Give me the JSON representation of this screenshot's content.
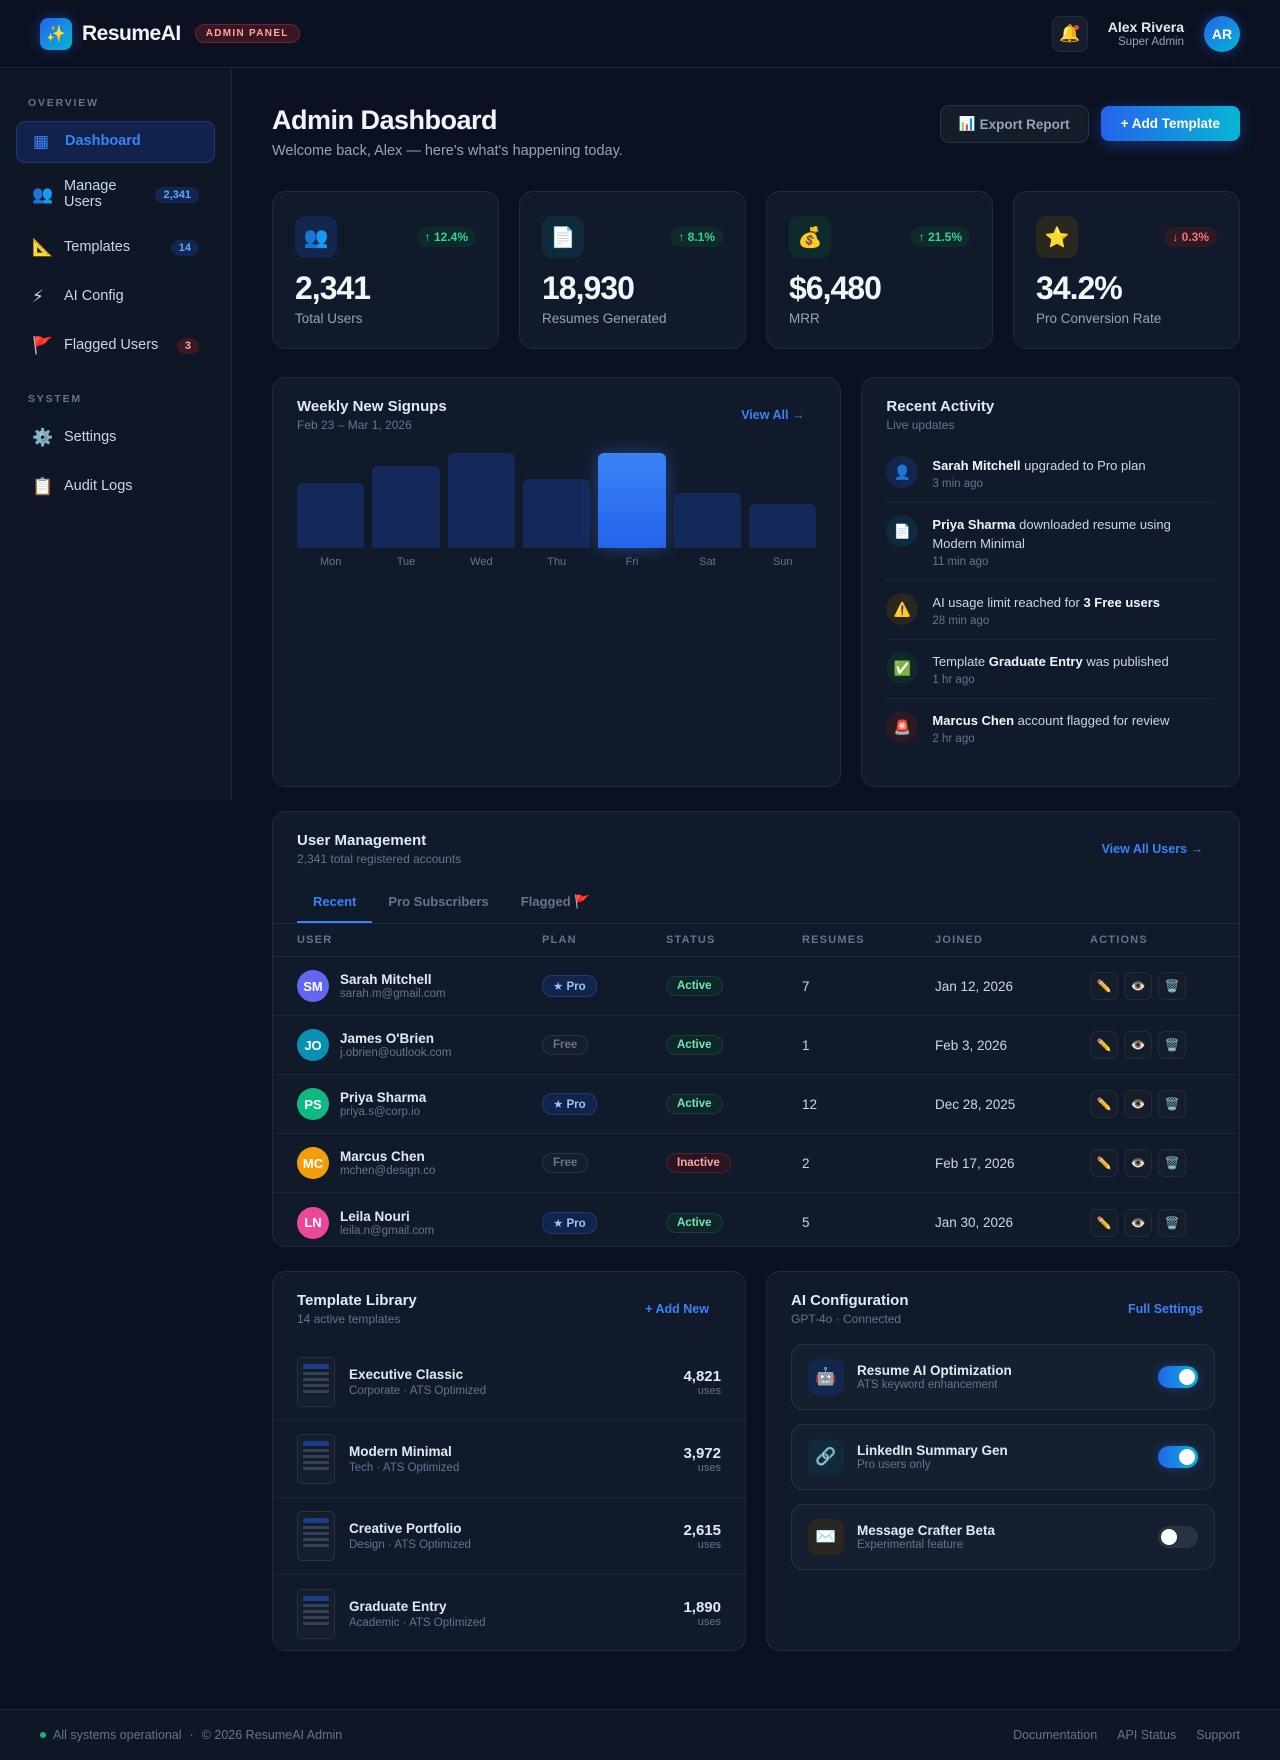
{
  "header": {
    "logo_icon": "sparkles-icon",
    "app_name": "ResumeAI",
    "admin_badge": "ADMIN PANEL",
    "notifications_icon": "bell-icon",
    "user": {
      "name": "Alex Rivera",
      "role": "Super Admin",
      "initials": "AR"
    }
  },
  "sidebar": {
    "sections": [
      {
        "title": "OVERVIEW"
      },
      {
        "title": "SYSTEM"
      }
    ],
    "items": [
      {
        "icon": "▦",
        "icon_name": "grid-icon",
        "label": "Dashboard",
        "badge": "",
        "active": true
      },
      {
        "icon": "👥",
        "icon_name": "users-icon",
        "label": "Manage Users",
        "badge": "2,341"
      },
      {
        "icon": "📐",
        "icon_name": "ruler-icon",
        "label": "Templates",
        "badge": "14"
      },
      {
        "icon": "⚡",
        "icon_name": "lightning-icon",
        "label": "AI Config",
        "badge": ""
      },
      {
        "icon": "🚩",
        "icon_name": "flag-icon",
        "label": "Flagged Users",
        "badge": "3"
      },
      {
        "icon": "⚙️",
        "icon_name": "gear-icon",
        "label": "Settings",
        "badge": ""
      },
      {
        "icon": "📋",
        "icon_name": "clipboard-icon",
        "label": "Audit Logs",
        "badge": ""
      }
    ]
  },
  "page": {
    "title": "Admin Dashboard",
    "subtitle": "Welcome back, Alex — here's what's happening today.",
    "export_icon": "📊",
    "export_label": "Export Report",
    "add_template_label": "+ Add Template"
  },
  "stats": [
    {
      "icon": "👥",
      "icon_bg": "#13264d",
      "delta": "↑ 12.4%",
      "direction": "up",
      "value": "2,341",
      "label": "Total Users"
    },
    {
      "icon": "📄",
      "icon_bg": "#0f2a3a",
      "delta": "↑ 8.1%",
      "direction": "up",
      "value": "18,930",
      "label": "Resumes Generated"
    },
    {
      "icon": "💰",
      "icon_bg": "#0f2a2a",
      "delta": "↑ 21.5%",
      "direction": "up",
      "value": "$6,480",
      "label": "MRR"
    },
    {
      "icon": "⭐",
      "icon_bg": "#2a2620",
      "delta": "↓ 0.3%",
      "direction": "down",
      "value": "34.2%",
      "label": "Pro Conversion Rate"
    }
  ],
  "signups": {
    "title": "Weekly New Signups",
    "range": "Feb 23 – Mar 1, 2026",
    "link": "View All →"
  },
  "chart_data": {
    "type": "bar",
    "title": "Weekly New Signups",
    "subtitle": "Feb 23 – Mar 1, 2026",
    "categories": [
      "Mon",
      "Tue",
      "Wed",
      "Thu",
      "Fri",
      "Sat",
      "Sun"
    ],
    "values": [
      66,
      84,
      97,
      70,
      97,
      56,
      45
    ],
    "highlight": "Fri",
    "xlabel": "",
    "ylabel": "",
    "ylim": [
      0,
      100
    ],
    "grid": false,
    "legend": "none",
    "note": "No axis values shown; values are relative bar heights (% of max)"
  },
  "activity": {
    "title": "Recent Activity",
    "subtitle": "Live updates",
    "items": [
      {
        "icon": "👤",
        "icon_bg": "#13264d",
        "bold": "Sarah Mitchell",
        "pre": "",
        "post": " upgraded to Pro plan",
        "time": "3 min ago"
      },
      {
        "icon": "📄",
        "icon_bg": "#0f2a3a",
        "bold": "Priya Sharma",
        "pre": "",
        "post": " downloaded resume using Modern Minimal",
        "time": "11 min ago"
      },
      {
        "icon": "⚠️",
        "icon_bg": "#2a2620",
        "bold": "3 Free users",
        "pre": "AI usage limit reached for ",
        "post": "",
        "time": "28 min ago"
      },
      {
        "icon": "✅",
        "icon_bg": "#0f2a2a",
        "bold": "Graduate Entry",
        "pre": "Template ",
        "post": " was published",
        "time": "1 hr ago"
      },
      {
        "icon": "🚨",
        "icon_bg": "#2b1a22",
        "bold": "Marcus Chen",
        "pre": "",
        "post": " account flagged for review",
        "time": "2 hr ago"
      }
    ]
  },
  "users": {
    "title": "User Management",
    "subtitle": "2,341 total registered accounts",
    "link": "View All Users →",
    "tabs": [
      "Recent",
      "Pro Subscribers",
      "Flagged 🚩"
    ],
    "active_tab": 0,
    "columns": [
      "USER",
      "PLAN",
      "STATUS",
      "RESUMES",
      "JOINED",
      "ACTIONS"
    ],
    "action_icons": [
      "✏️",
      "👁️",
      "🗑️"
    ],
    "rows": [
      {
        "initials": "SM",
        "color": "#6366f1",
        "name": "Sarah Mitchell",
        "email": "sarah.m@gmail.com",
        "plan": "★ Pro",
        "plan_type": "pro",
        "status": "Active",
        "status_type": "active",
        "resumes": "7",
        "joined": "Jan 12, 2026"
      },
      {
        "initials": "JO",
        "color": "#0891b2",
        "name": "James O'Brien",
        "email": "j.obrien@outlook.com",
        "plan": "Free",
        "plan_type": "free",
        "status": "Active",
        "status_type": "active",
        "resumes": "1",
        "joined": "Feb 3, 2026"
      },
      {
        "initials": "PS",
        "color": "#10b981",
        "name": "Priya Sharma",
        "email": "priya.s@corp.io",
        "plan": "★ Pro",
        "plan_type": "pro",
        "status": "Active",
        "status_type": "active",
        "resumes": "12",
        "joined": "Dec 28, 2025"
      },
      {
        "initials": "MC",
        "color": "#f59e0b",
        "name": "Marcus Chen",
        "email": "mchen@design.co",
        "plan": "Free",
        "plan_type": "free",
        "status": "Inactive",
        "status_type": "inactive",
        "resumes": "2",
        "joined": "Feb 17, 2026"
      },
      {
        "initials": "LN",
        "color": "#ec4899",
        "name": "Leila Nouri",
        "email": "leila.n@gmail.com",
        "plan": "★ Pro",
        "plan_type": "pro",
        "status": "Active",
        "status_type": "active",
        "resumes": "5",
        "joined": "Jan 30, 2026"
      }
    ]
  },
  "templates": {
    "title": "Template Library",
    "subtitle": "14 active templates",
    "link": "+ Add New",
    "items": [
      {
        "name": "Executive Classic",
        "category": "Corporate · ATS Optimized",
        "uses": "4,821",
        "unit": "uses"
      },
      {
        "name": "Modern Minimal",
        "category": "Tech · ATS Optimized",
        "uses": "3,972",
        "unit": "uses"
      },
      {
        "name": "Creative Portfolio",
        "category": "Design · ATS Optimized",
        "uses": "2,615",
        "unit": "uses"
      },
      {
        "name": "Graduate Entry",
        "category": "Academic · ATS Optimized",
        "uses": "1,890",
        "unit": "uses"
      }
    ]
  },
  "ai_config": {
    "title": "AI Configuration",
    "subtitle": "GPT-4o · Connected",
    "link": "Full Settings",
    "items": [
      {
        "icon": "🤖",
        "icon_bg": "#13264d",
        "name": "Resume AI Optimization",
        "desc": "ATS keyword enhancement",
        "enabled": true
      },
      {
        "icon": "🔗",
        "icon_bg": "#0f2a3a",
        "name": "LinkedIn Summary Gen",
        "desc": "Pro users only",
        "enabled": true
      },
      {
        "icon": "✉️",
        "icon_bg": "#2a2620",
        "name": "Message Crafter Beta",
        "desc": "Experimental feature",
        "enabled": false
      }
    ]
  },
  "footer": {
    "status": "All systems operational",
    "separator": "·",
    "copyright": "© 2026 ResumeAI Admin",
    "links": [
      "Documentation",
      "API Status",
      "Support"
    ]
  },
  "colors": {
    "accent": "#3b82f6",
    "background": "#0b1120",
    "card": "#111a2b",
    "success": "#34d399",
    "danger": "#f87171"
  }
}
